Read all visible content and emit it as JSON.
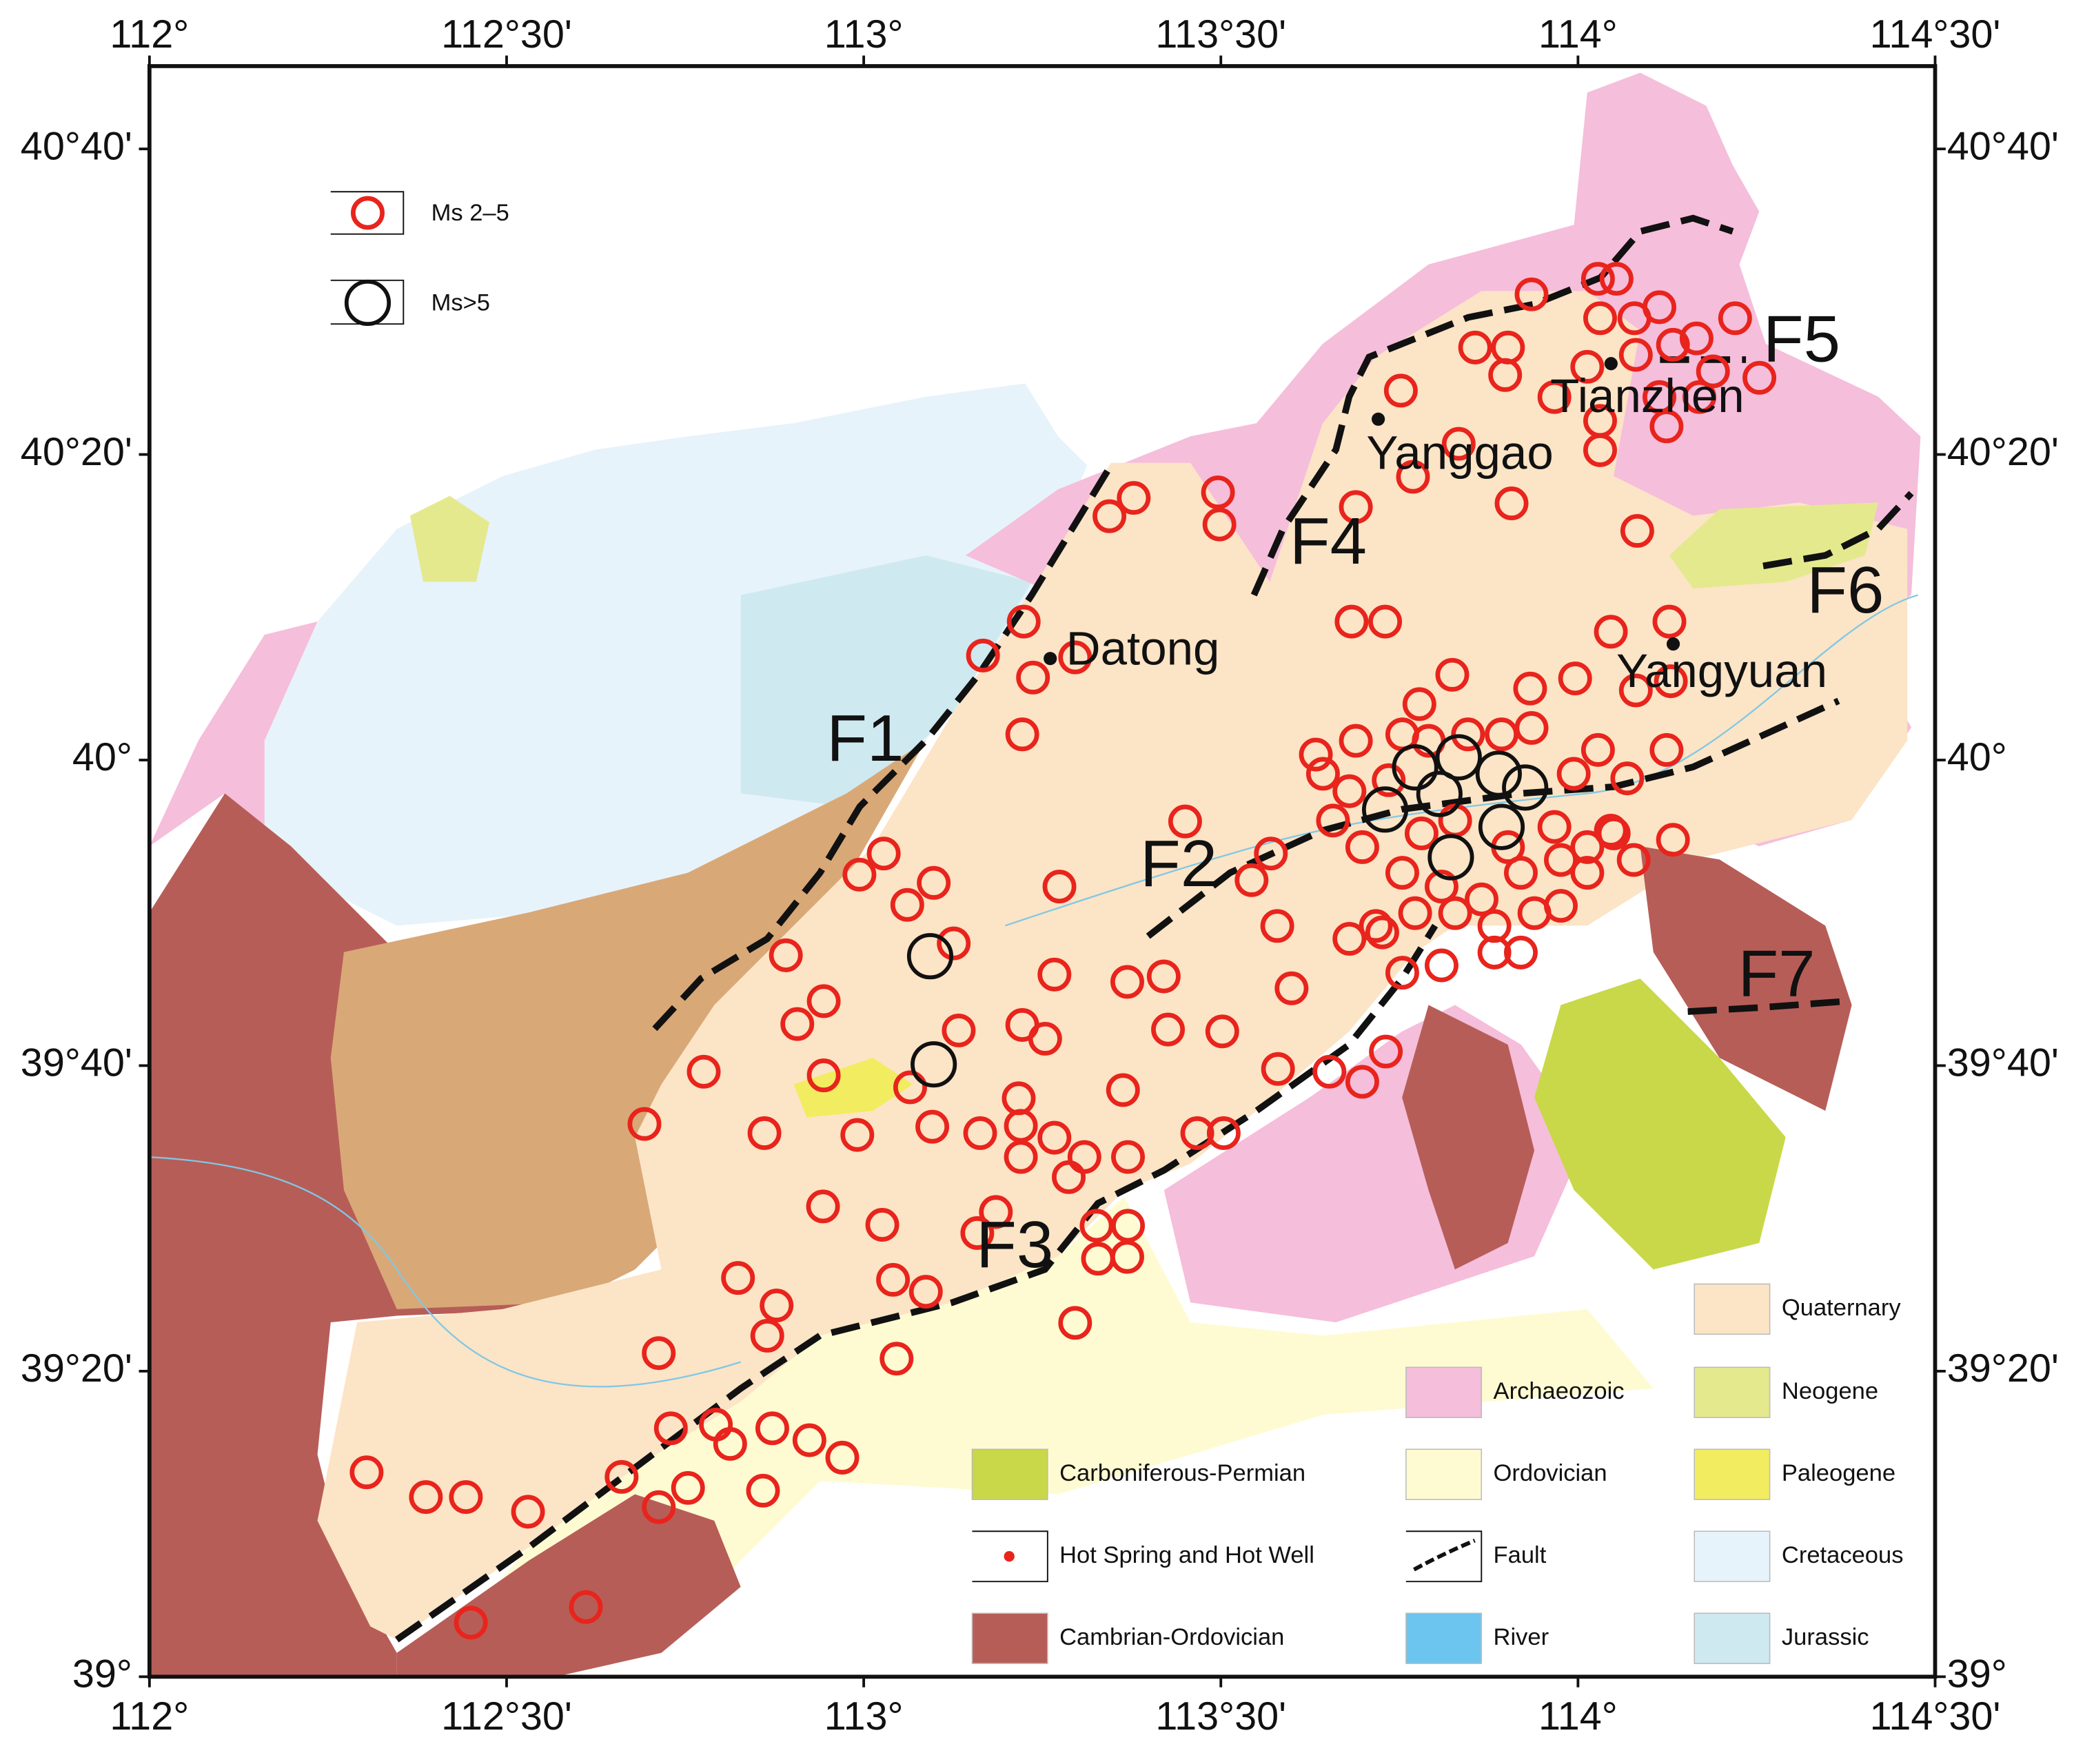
{
  "map": {
    "lon_lim": [
      112,
      114.5
    ],
    "lat_lim": [
      39,
      40.757
    ],
    "lon_ticks": [
      {
        "value": 112,
        "label": "112°"
      },
      {
        "value": 112.5,
        "label": "112°30'"
      },
      {
        "value": 113,
        "label": "113°"
      },
      {
        "value": 113.5,
        "label": "113°30'"
      },
      {
        "value": 114,
        "label": "114°"
      },
      {
        "value": 114.5,
        "label": "114°30'"
      }
    ],
    "lat_ticks": [
      {
        "value": 39,
        "label": "39°"
      },
      {
        "value": 39.333333,
        "label": "39°20'"
      },
      {
        "value": 39.666667,
        "label": "39°40'"
      },
      {
        "value": 40,
        "label": "40°"
      },
      {
        "value": 40.333333,
        "label": "40°20'"
      },
      {
        "value": 40.666667,
        "label": "40°40'"
      }
    ],
    "faults": [
      "F1",
      "F2",
      "F3",
      "F4",
      "F5",
      "F6",
      "F7"
    ],
    "cities": [
      "Datong",
      "Yanggao",
      "Tianzhen",
      "Yangyuan"
    ],
    "magnitude_legend": [
      {
        "name": "Ms 2–5",
        "color": "#e8241c"
      },
      {
        "name": "Ms>5",
        "color": "#111111"
      }
    ],
    "geology_legend": [
      {
        "name": "Quaternary",
        "color": "#fce4c6",
        "kind": "fill"
      },
      {
        "name": "Archaeozoic",
        "color": "#f5bedb",
        "kind": "fill"
      },
      {
        "name": "Neogene",
        "color": "#e4e98e",
        "kind": "fill"
      },
      {
        "name": "Carboniferous-Permian",
        "color": "#c8d848",
        "kind": "fill"
      },
      {
        "name": "Ordovician",
        "color": "#fefbd2",
        "kind": "fill"
      },
      {
        "name": "Paleogene",
        "color": "#f2ec60",
        "kind": "fill"
      },
      {
        "name": "Hot Spring and Hot Well",
        "color": "#e8241c",
        "kind": "dot"
      },
      {
        "name": "Fault",
        "color": "#111111",
        "kind": "fault"
      },
      {
        "name": "Cretaceous",
        "color": "#e7f3fb",
        "kind": "fill"
      },
      {
        "name": "Cambrian-Ordovician",
        "color": "#b75d58",
        "kind": "fill"
      },
      {
        "name": "River",
        "color": "#6cc5ee",
        "kind": "fill"
      },
      {
        "name": "Jurassic",
        "color": "#cfe9f0",
        "kind": "fill"
      }
    ],
    "events_ms_2_5": [
      [
        112.304,
        39.223
      ],
      [
        112.387,
        39.196
      ],
      [
        112.443,
        39.196
      ],
      [
        112.53,
        39.18
      ],
      [
        112.45,
        39.059
      ],
      [
        112.611,
        39.076
      ],
      [
        112.661,
        39.218
      ],
      [
        112.73,
        39.271
      ],
      [
        112.713,
        39.185
      ],
      [
        112.754,
        39.206
      ],
      [
        112.793,
        39.275
      ],
      [
        112.813,
        39.254
      ],
      [
        112.859,
        39.203
      ],
      [
        112.872,
        39.271
      ],
      [
        112.924,
        39.258
      ],
      [
        112.97,
        39.239
      ],
      [
        112.713,
        39.353
      ],
      [
        112.865,
        39.372
      ],
      [
        112.878,
        39.405
      ],
      [
        112.824,
        39.435
      ],
      [
        112.693,
        39.603
      ],
      [
        112.776,
        39.66
      ],
      [
        112.861,
        39.593
      ],
      [
        112.891,
        39.787
      ],
      [
        112.907,
        39.712
      ],
      [
        112.944,
        39.737
      ],
      [
        112.944,
        39.656
      ],
      [
        112.943,
        39.513
      ],
      [
        112.991,
        39.591
      ],
      [
        112.994,
        39.875
      ],
      [
        113.028,
        39.898
      ],
      [
        113.061,
        39.842
      ],
      [
        113.098,
        39.866
      ],
      [
        113.126,
        39.8
      ],
      [
        113.133,
        39.705
      ],
      [
        113.065,
        39.643
      ],
      [
        113.096,
        39.6
      ],
      [
        113.026,
        39.493
      ],
      [
        113.041,
        39.433
      ],
      [
        113.087,
        39.42
      ],
      [
        113.046,
        39.347
      ],
      [
        113.163,
        39.593
      ],
      [
        113.159,
        39.484
      ],
      [
        113.185,
        39.507
      ],
      [
        113.217,
        39.631
      ],
      [
        113.222,
        39.711
      ],
      [
        113.254,
        39.696
      ],
      [
        113.267,
        39.766
      ],
      [
        113.274,
        39.862
      ],
      [
        113.267,
        39.588
      ],
      [
        113.22,
        39.601
      ],
      [
        113.22,
        39.567
      ],
      [
        113.287,
        39.545
      ],
      [
        113.309,
        39.567
      ],
      [
        113.369,
        39.758
      ],
      [
        113.37,
        39.567
      ],
      [
        113.363,
        39.64
      ],
      [
        113.42,
        39.764
      ],
      [
        113.426,
        39.706
      ],
      [
        113.467,
        39.593
      ],
      [
        113.504,
        39.593
      ],
      [
        113.502,
        39.704
      ],
      [
        113.45,
        39.933
      ],
      [
        113.543,
        39.869
      ],
      [
        113.57,
        39.898
      ],
      [
        113.579,
        39.819
      ],
      [
        113.599,
        39.751
      ],
      [
        113.58,
        39.663
      ],
      [
        113.652,
        39.66
      ],
      [
        113.698,
        39.649
      ],
      [
        113.731,
        39.682
      ],
      [
        113.326,
        39.492
      ],
      [
        113.37,
        39.492
      ],
      [
        113.328,
        39.456
      ],
      [
        113.369,
        39.458
      ],
      [
        113.296,
        39.386
      ],
      [
        113.167,
        40.114
      ],
      [
        113.224,
        40.151
      ],
      [
        113.237,
        40.09
      ],
      [
        113.296,
        40.112
      ],
      [
        113.222,
        40.028
      ],
      [
        113.344,
        40.266
      ],
      [
        113.378,
        40.286
      ],
      [
        113.496,
        40.292
      ],
      [
        113.498,
        40.257
      ],
      [
        113.689,
        40.276
      ],
      [
        113.73,
        40.151
      ],
      [
        113.683,
        40.151
      ],
      [
        113.752,
        40.403
      ],
      [
        113.769,
        40.309
      ],
      [
        113.833,
        40.345
      ],
      [
        113.856,
        40.45
      ],
      [
        113.902,
        40.45
      ],
      [
        113.898,
        40.42
      ],
      [
        113.907,
        40.28
      ],
      [
        113.935,
        40.508
      ],
      [
        114.028,
        40.525
      ],
      [
        114.054,
        40.525
      ],
      [
        114.031,
        40.482
      ],
      [
        114.079,
        40.482
      ],
      [
        114.114,
        40.494
      ],
      [
        114.166,
        40.46
      ],
      [
        114.22,
        40.482
      ],
      [
        114.013,
        40.429
      ],
      [
        114.081,
        40.442
      ],
      [
        114.133,
        40.453
      ],
      [
        114.189,
        40.424
      ],
      [
        114.254,
        40.417
      ],
      [
        113.967,
        40.396
      ],
      [
        114.031,
        40.37
      ],
      [
        114.114,
        40.396
      ],
      [
        114.17,
        40.396
      ],
      [
        114.124,
        40.364
      ],
      [
        114.031,
        40.338
      ],
      [
        114.083,
        40.25
      ],
      [
        114.046,
        40.14
      ],
      [
        114.128,
        40.151
      ],
      [
        114.081,
        40.076
      ],
      [
        114.13,
        40.086
      ],
      [
        113.996,
        40.089
      ],
      [
        113.933,
        40.078
      ],
      [
        113.824,
        40.093
      ],
      [
        114.028,
        40.011
      ],
      [
        114.124,
        40.011
      ],
      [
        114.069,
        39.98
      ],
      [
        114.133,
        39.913
      ],
      [
        114.078,
        39.891
      ],
      [
        114.046,
        39.923
      ],
      [
        113.778,
        40.061
      ],
      [
        113.935,
        40.035
      ],
      [
        113.633,
        40.006
      ],
      [
        113.643,
        39.985
      ],
      [
        113.689,
        40.021
      ],
      [
        113.754,
        40.028
      ],
      [
        113.791,
        40.021
      ],
      [
        113.846,
        40.028
      ],
      [
        113.893,
        40.028
      ],
      [
        113.68,
        39.966
      ],
      [
        113.735,
        39.978
      ],
      [
        113.994,
        39.985
      ],
      [
        113.657,
        39.934
      ],
      [
        113.698,
        39.905
      ],
      [
        113.754,
        39.877
      ],
      [
        113.809,
        39.862
      ],
      [
        113.865,
        39.848
      ],
      [
        113.92,
        39.877
      ],
      [
        113.976,
        39.891
      ],
      [
        114.013,
        39.905
      ],
      [
        113.967,
        39.927
      ],
      [
        113.939,
        39.833
      ],
      [
        113.883,
        39.819
      ],
      [
        113.828,
        39.833
      ],
      [
        113.772,
        39.833
      ],
      [
        113.717,
        39.819
      ],
      [
        113.68,
        39.805
      ],
      [
        113.726,
        39.812
      ],
      [
        113.754,
        39.768
      ],
      [
        113.809,
        39.776
      ],
      [
        113.883,
        39.79
      ],
      [
        113.92,
        39.79
      ],
      [
        113.976,
        39.841
      ],
      [
        114.013,
        39.877
      ],
      [
        114.05,
        39.92
      ],
      [
        113.828,
        39.934
      ],
      [
        113.902,
        39.905
      ],
      [
        113.781,
        39.92
      ]
    ],
    "events_ms_gt_5": [
      [
        113.093,
        39.786
      ],
      [
        113.098,
        39.668
      ],
      [
        113.73,
        39.946
      ],
      [
        113.772,
        39.992
      ],
      [
        113.833,
        40.003
      ],
      [
        113.806,
        39.963
      ],
      [
        113.889,
        39.985
      ],
      [
        113.926,
        39.97
      ],
      [
        113.893,
        39.927
      ],
      [
        113.822,
        39.894
      ]
    ]
  }
}
